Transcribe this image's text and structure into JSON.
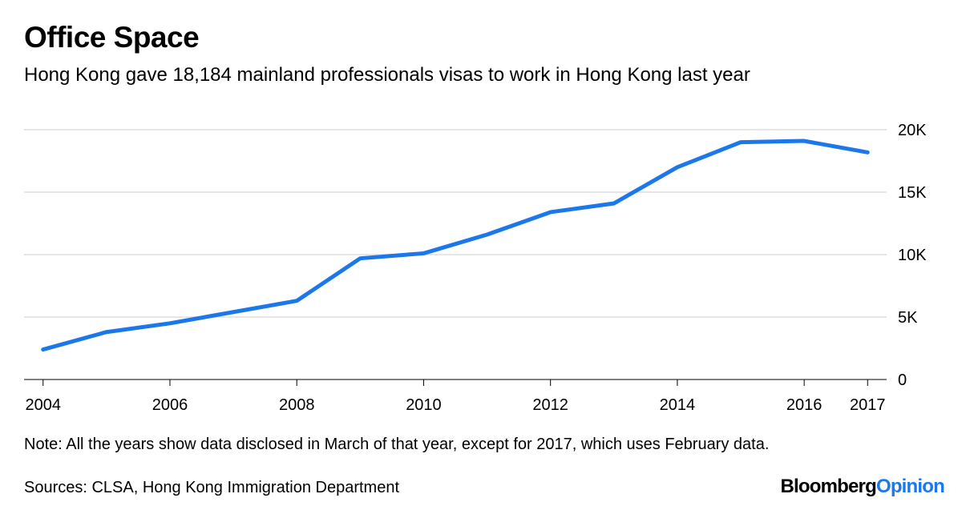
{
  "header": {
    "title": "Office Space",
    "subtitle": "Hong Kong gave 18,184 mainland professionals visas to work in Hong Kong last year"
  },
  "footer": {
    "note": "Note: All the years show data disclosed in March of that year, except for 2017, which uses February data.",
    "source": "Sources: CLSA, Hong Kong Immigration Department",
    "brand_main": "Bloomberg",
    "brand_accent": "Opinion"
  },
  "colors": {
    "line": "#1c78ea",
    "grid": "#e6e6e6",
    "axis": "#000000",
    "brand_accent": "#1c78ea"
  },
  "chart_data": {
    "type": "line",
    "title": "Office Space",
    "subtitle": "Hong Kong gave 18,184 mainland professionals visas to work in Hong Kong last year",
    "xlabel": "",
    "ylabel": "",
    "x": [
      2004,
      2005,
      2006,
      2007,
      2008,
      2009,
      2010,
      2011,
      2012,
      2013,
      2014,
      2015,
      2016,
      2017
    ],
    "series": [
      {
        "values": [
          2400,
          3800,
          4500,
          5400,
          6300,
          9700,
          10100,
          11600,
          13400,
          14100,
          17000,
          19000,
          19100,
          18184
        ]
      }
    ],
    "xlim": [
      2003.7,
      2017.3
    ],
    "ylim": [
      0,
      20000
    ],
    "x_ticks": [
      2004,
      2006,
      2008,
      2010,
      2012,
      2014,
      2016,
      2017
    ],
    "x_tick_labels": [
      "2004",
      "2006",
      "2008",
      "2010",
      "2012",
      "2014",
      "2016",
      "2017"
    ],
    "y_ticks": [
      0,
      5000,
      10000,
      15000,
      20000
    ],
    "y_tick_labels": [
      "0",
      "5K",
      "10K",
      "15K",
      "20K"
    ],
    "y_axis_side": "right",
    "grid": true,
    "legend": "none"
  }
}
